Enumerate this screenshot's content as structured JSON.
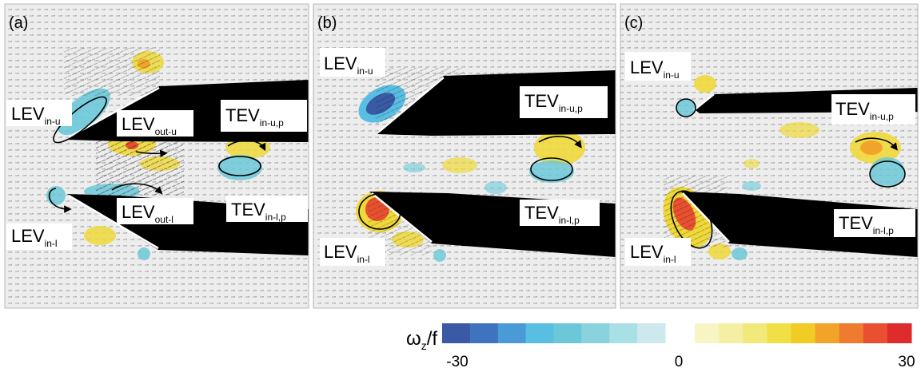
{
  "panels": [
    {
      "tag": "(a)",
      "labels": [
        {
          "main": "LEV",
          "sub": "in-u"
        },
        {
          "main": "LEV",
          "sub": "out-u"
        },
        {
          "main": "TEV",
          "sub": "in-u,p"
        },
        {
          "main": "LEV",
          "sub": "out-l"
        },
        {
          "main": "TEV",
          "sub": "in-l,p"
        },
        {
          "main": "LEV",
          "sub": "in-l"
        }
      ]
    },
    {
      "tag": "(b)",
      "labels": [
        {
          "main": "LEV",
          "sub": "in-u"
        },
        {
          "main": "TEV",
          "sub": "in-u,p"
        },
        {
          "main": "TEV",
          "sub": "in-l,p"
        },
        {
          "main": "LEV",
          "sub": "in-l"
        }
      ]
    },
    {
      "tag": "(c)",
      "labels": [
        {
          "main": "LEV",
          "sub": "in-u"
        },
        {
          "main": "TEV",
          "sub": "in-u,p"
        },
        {
          "main": "TEV",
          "sub": "in-l,p"
        },
        {
          "main": "LEV",
          "sub": "in-l"
        }
      ]
    }
  ],
  "colorbar": {
    "title_main": "ω",
    "title_sub": "z",
    "title_rest": "/f",
    "tick_min": "-30",
    "tick_mid": "0",
    "tick_max": "30",
    "neg_colors": [
      "#3a5aa6",
      "#3f73bf",
      "#4a9ad8",
      "#58bfe3",
      "#6cc8d8",
      "#8ad3de",
      "#a9e0e6",
      "#cde9ef"
    ],
    "pos_colors": [
      "#f7f5c4",
      "#f4efa3",
      "#f2e97b",
      "#f0e045",
      "#f1cc24",
      "#f2a42a",
      "#ef7b2e",
      "#e8502f",
      "#df2b2b"
    ]
  },
  "colors": {
    "negative": "#4ab9d6",
    "positive": "#efd83a",
    "strong_negative": "#2b53a8",
    "strong_positive": "#de3f2b"
  }
}
